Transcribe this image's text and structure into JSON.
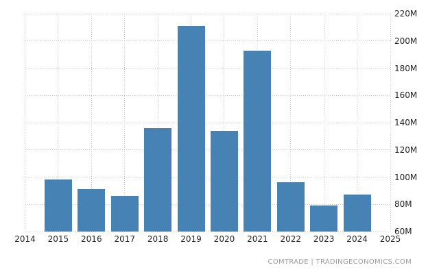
{
  "chart_data": {
    "type": "bar",
    "title": "",
    "xlabel": "",
    "ylabel": "",
    "categories": [
      "2015",
      "2016",
      "2017",
      "2018",
      "2019",
      "2020",
      "2021",
      "2022",
      "2023",
      "2024"
    ],
    "values": [
      98,
      91,
      86,
      136,
      211,
      134,
      193,
      96,
      79,
      87
    ],
    "x_ticks": [
      "2014",
      "2015",
      "2016",
      "2017",
      "2018",
      "2019",
      "2020",
      "2021",
      "2022",
      "2023",
      "2024",
      "2025"
    ],
    "y_ticks": [
      220,
      200,
      180,
      160,
      140,
      120,
      100,
      80,
      60
    ],
    "y_tick_suffix": "M",
    "ylim": [
      60,
      220
    ],
    "grid": true,
    "legend": "none",
    "y_axis_side": "right",
    "bar_color": "#4682b4"
  },
  "attribution": {
    "text": "COMTRADE | TRADINGECONOMICS.COM"
  },
  "colors": {
    "bar": "#4682b4",
    "grid": "#c9c9c9",
    "tick_label": "#222222",
    "attribution": "#9a9a9a",
    "background": "#ffffff"
  }
}
